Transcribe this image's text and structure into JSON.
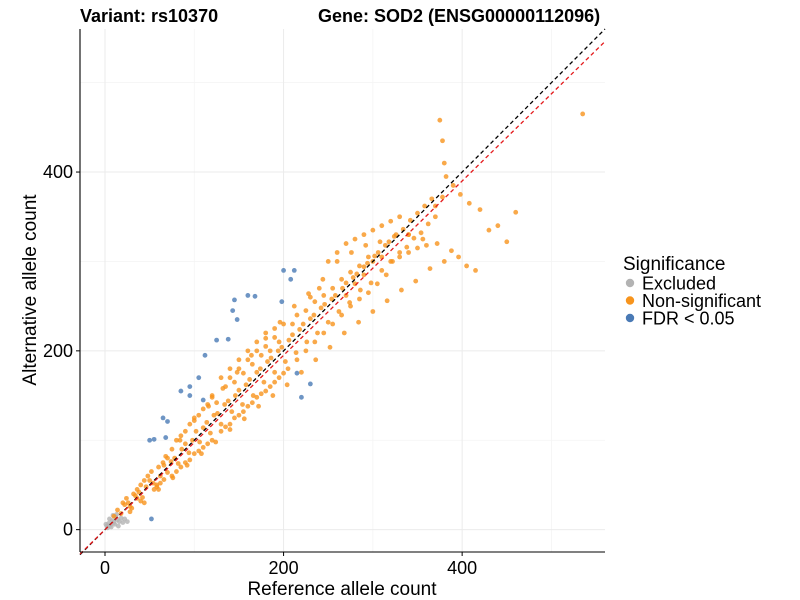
{
  "chart_data": {
    "type": "scatter",
    "title_left": "Variant: rs10370",
    "title_right": "Gene: SOD2 (ENSG00000112096)",
    "xlabel": "Reference allele count",
    "ylabel": "Alternative allele count",
    "xlim": [
      -28,
      560
    ],
    "ylim": [
      -25,
      560
    ],
    "xticks": [
      0,
      200,
      400
    ],
    "yticks": [
      0,
      200,
      400
    ],
    "xtick_labels": [
      "0",
      "200",
      "400"
    ],
    "ytick_labels": [
      "0",
      "200",
      "400"
    ],
    "reference_lines": [
      {
        "name": "identity",
        "slope": 1.0,
        "intercept": 0,
        "color": "#000000",
        "style": "dashed"
      },
      {
        "name": "fit",
        "slope": 0.975,
        "intercept": 0,
        "color": "#e41a1c",
        "style": "dashed"
      }
    ],
    "legend": {
      "title": "Significance",
      "position": "right",
      "entries": [
        {
          "label": "Excluded",
          "color": "#b3b3b3"
        },
        {
          "label": "Non-significant",
          "color": "#f7941d"
        },
        {
          "label": "FDR < 0.05",
          "color": "#4a7ab5"
        }
      ]
    },
    "series": [
      {
        "name": "Excluded",
        "color": "#b3b3b3",
        "points": [
          [
            2,
            4
          ],
          [
            4,
            7
          ],
          [
            6,
            5
          ],
          [
            8,
            10
          ],
          [
            10,
            8
          ],
          [
            12,
            14
          ],
          [
            14,
            11
          ],
          [
            16,
            9
          ],
          [
            18,
            13
          ],
          [
            5,
            12
          ],
          [
            9,
            16
          ],
          [
            20,
            8
          ],
          [
            3,
            2
          ],
          [
            7,
            3
          ],
          [
            11,
            6
          ],
          [
            13,
            17
          ],
          [
            22,
            12
          ],
          [
            25,
            9
          ],
          [
            15,
            4
          ],
          [
            1,
            6
          ]
        ]
      },
      {
        "name": "FDR < 0.05",
        "color": "#4a7ab5",
        "points": [
          [
            50,
            100
          ],
          [
            55,
            101
          ],
          [
            52,
            12
          ],
          [
            68,
            103
          ],
          [
            70,
            121
          ],
          [
            85,
            155
          ],
          [
            95,
            160
          ],
          [
            105,
            170
          ],
          [
            110,
            145
          ],
          [
            112,
            195
          ],
          [
            125,
            212
          ],
          [
            138,
            213
          ],
          [
            143,
            245
          ],
          [
            148,
            235
          ],
          [
            145,
            257
          ],
          [
            160,
            262
          ],
          [
            168,
            261
          ],
          [
            200,
            290
          ],
          [
            208,
            280
          ],
          [
            212,
            290
          ],
          [
            198,
            255
          ],
          [
            215,
            175
          ],
          [
            220,
            148
          ],
          [
            230,
            163
          ],
          [
            95,
            150
          ],
          [
            65,
            125
          ]
        ]
      },
      {
        "name": "Non-significant",
        "color": "#f7941d",
        "points": [
          [
            10,
            15
          ],
          [
            14,
            22
          ],
          [
            18,
            18
          ],
          [
            22,
            28
          ],
          [
            26,
            30
          ],
          [
            30,
            24
          ],
          [
            34,
            38
          ],
          [
            38,
            42
          ],
          [
            42,
            36
          ],
          [
            46,
            48
          ],
          [
            50,
            55
          ],
          [
            54,
            52
          ],
          [
            58,
            50
          ],
          [
            62,
            60
          ],
          [
            66,
            72
          ],
          [
            70,
            64
          ],
          [
            74,
            76
          ],
          [
            78,
            80
          ],
          [
            82,
            74
          ],
          [
            86,
            90
          ],
          [
            90,
            96
          ],
          [
            94,
            86
          ],
          [
            98,
            100
          ],
          [
            102,
            110
          ],
          [
            106,
            98
          ],
          [
            110,
            114
          ],
          [
            114,
            120
          ],
          [
            118,
            108
          ],
          [
            122,
            128
          ],
          [
            126,
            130
          ],
          [
            130,
            118
          ],
          [
            134,
            140
          ],
          [
            138,
            144
          ],
          [
            142,
            132
          ],
          [
            146,
            150
          ],
          [
            150,
            156
          ],
          [
            154,
            140
          ],
          [
            158,
            162
          ],
          [
            162,
            168
          ],
          [
            166,
            150
          ],
          [
            170,
            176
          ],
          [
            174,
            180
          ],
          [
            178,
            165
          ],
          [
            182,
            188
          ],
          [
            186,
            192
          ],
          [
            190,
            176
          ],
          [
            194,
            200
          ],
          [
            198,
            204
          ],
          [
            202,
            188
          ],
          [
            206,
            212
          ],
          [
            210,
            218
          ],
          [
            214,
            198
          ],
          [
            218,
            224
          ],
          [
            222,
            230
          ],
          [
            226,
            210
          ],
          [
            230,
            236
          ],
          [
            234,
            240
          ],
          [
            238,
            220
          ],
          [
            242,
            248
          ],
          [
            246,
            252
          ],
          [
            250,
            232
          ],
          [
            254,
            258
          ],
          [
            258,
            262
          ],
          [
            262,
            244
          ],
          [
            266,
            270
          ],
          [
            270,
            276
          ],
          [
            274,
            254
          ],
          [
            278,
            282
          ],
          [
            282,
            286
          ],
          [
            286,
            268
          ],
          [
            290,
            294
          ],
          [
            294,
            298
          ],
          [
            298,
            276
          ],
          [
            302,
            306
          ],
          [
            306,
            310
          ],
          [
            310,
            290
          ],
          [
            314,
            318
          ],
          [
            318,
            322
          ],
          [
            322,
            300
          ],
          [
            326,
            330
          ],
          [
            330,
            310
          ],
          [
            334,
            336
          ],
          [
            338,
            316
          ],
          [
            342,
            346
          ],
          [
            346,
            326
          ],
          [
            350,
            354
          ],
          [
            354,
            332
          ],
          [
            358,
            362
          ],
          [
            362,
            342
          ],
          [
            366,
            370
          ],
          [
            370,
            350
          ],
          [
            20,
            30
          ],
          [
            28,
            20
          ],
          [
            36,
            45
          ],
          [
            44,
            30
          ],
          [
            52,
            65
          ],
          [
            60,
            45
          ],
          [
            68,
            82
          ],
          [
            76,
            58
          ],
          [
            84,
            100
          ],
          [
            92,
            72
          ],
          [
            100,
            122
          ],
          [
            108,
            85
          ],
          [
            116,
            138
          ],
          [
            124,
            98
          ],
          [
            132,
            158
          ],
          [
            140,
            112
          ],
          [
            148,
            176
          ],
          [
            156,
            124
          ],
          [
            164,
            195
          ],
          [
            172,
            138
          ],
          [
            180,
            214
          ],
          [
            188,
            150
          ],
          [
            196,
            232
          ],
          [
            204,
            162
          ],
          [
            212,
            250
          ],
          [
            220,
            176
          ],
          [
            228,
            264
          ],
          [
            236,
            190
          ],
          [
            244,
            280
          ],
          [
            252,
            204
          ],
          [
            260,
            300
          ],
          [
            268,
            220
          ],
          [
            276,
            310
          ],
          [
            284,
            232
          ],
          [
            292,
            318
          ],
          [
            300,
            244
          ],
          [
            308,
            322
          ],
          [
            316,
            256
          ],
          [
            324,
            328
          ],
          [
            332,
            268
          ],
          [
            340,
            330
          ],
          [
            348,
            278
          ],
          [
            356,
            325
          ],
          [
            364,
            292
          ],
          [
            372,
            320
          ],
          [
            380,
            300
          ],
          [
            388,
            312
          ],
          [
            396,
            305
          ],
          [
            405,
            295
          ],
          [
            415,
            290
          ],
          [
            430,
            335
          ],
          [
            440,
            340
          ],
          [
            450,
            322
          ],
          [
            460,
            355
          ],
          [
            375,
            458
          ],
          [
            378,
            435
          ],
          [
            380,
            410
          ],
          [
            382,
            395
          ],
          [
            378,
            372
          ],
          [
            370,
            362
          ],
          [
            390,
            385
          ],
          [
            398,
            375
          ],
          [
            408,
            365
          ],
          [
            420,
            358
          ],
          [
            535,
            465
          ],
          [
            120,
            150
          ],
          [
            125,
            142
          ],
          [
            135,
            160
          ],
          [
            140,
            170
          ],
          [
            145,
            165
          ],
          [
            150,
            180
          ],
          [
            155,
            175
          ],
          [
            160,
            190
          ],
          [
            165,
            185
          ],
          [
            170,
            200
          ],
          [
            175,
            195
          ],
          [
            180,
            205
          ],
          [
            185,
            200
          ],
          [
            190,
            215
          ],
          [
            195,
            210
          ],
          [
            130,
            110
          ],
          [
            135,
            115
          ],
          [
            140,
            118
          ],
          [
            145,
            125
          ],
          [
            150,
            128
          ],
          [
            155,
            132
          ],
          [
            160,
            138
          ],
          [
            165,
            142
          ],
          [
            170,
            148
          ],
          [
            175,
            152
          ],
          [
            180,
            155
          ],
          [
            185,
            160
          ],
          [
            190,
            165
          ],
          [
            195,
            170
          ],
          [
            200,
            175
          ],
          [
            80,
            100
          ],
          [
            85,
            105
          ],
          [
            90,
            110
          ],
          [
            95,
            118
          ],
          [
            100,
            125
          ],
          [
            105,
            128
          ],
          [
            110,
            135
          ],
          [
            115,
            140
          ],
          [
            120,
            148
          ],
          [
            75,
            60
          ],
          [
            80,
            65
          ],
          [
            85,
            70
          ],
          [
            90,
            75
          ],
          [
            95,
            78
          ],
          [
            100,
            85
          ],
          [
            105,
            88
          ],
          [
            110,
            92
          ],
          [
            115,
            96
          ],
          [
            120,
            100
          ],
          [
            60,
            70
          ],
          [
            65,
            75
          ],
          [
            70,
            80
          ],
          [
            75,
            90
          ],
          [
            55,
            45
          ],
          [
            58,
            48
          ],
          [
            62,
            52
          ],
          [
            66,
            56
          ],
          [
            40,
            50
          ],
          [
            44,
            55
          ],
          [
            48,
            60
          ],
          [
            32,
            40
          ],
          [
            36,
            35
          ],
          [
            40,
            32
          ],
          [
            24,
            35
          ],
          [
            28,
            26
          ],
          [
            210,
            230
          ],
          [
            215,
            240
          ],
          [
            225,
            245
          ],
          [
            235,
            255
          ],
          [
            245,
            262
          ],
          [
            255,
            270
          ],
          [
            265,
            280
          ],
          [
            275,
            288
          ],
          [
            285,
            295
          ],
          [
            295,
            305
          ],
          [
            205,
            180
          ],
          [
            215,
            190
          ],
          [
            225,
            200
          ],
          [
            235,
            210
          ],
          [
            245,
            220
          ],
          [
            255,
            230
          ],
          [
            265,
            240
          ],
          [
            275,
            250
          ],
          [
            285,
            258
          ],
          [
            295,
            265
          ],
          [
            305,
            275
          ],
          [
            315,
            285
          ],
          [
            250,
            300
          ],
          [
            260,
            310
          ],
          [
            270,
            320
          ],
          [
            280,
            325
          ],
          [
            290,
            330
          ],
          [
            300,
            335
          ],
          [
            310,
            340
          ],
          [
            320,
            345
          ],
          [
            330,
            350
          ],
          [
            340,
            330
          ],
          [
            200,
            230
          ],
          [
            190,
            225
          ],
          [
            180,
            220
          ],
          [
            170,
            210
          ],
          [
            160,
            200
          ],
          [
            150,
            190
          ],
          [
            140,
            180
          ],
          [
            130,
            170
          ],
          [
            240,
            270
          ],
          [
            230,
            260
          ],
          [
            320,
            300
          ],
          [
            330,
            305
          ],
          [
            340,
            310
          ],
          [
            350,
            315
          ],
          [
            360,
            318
          ],
          [
            300,
            300
          ],
          [
            310,
            305
          ],
          [
            290,
            285
          ],
          [
            280,
            275
          ],
          [
            270,
            262
          ]
        ]
      }
    ]
  }
}
